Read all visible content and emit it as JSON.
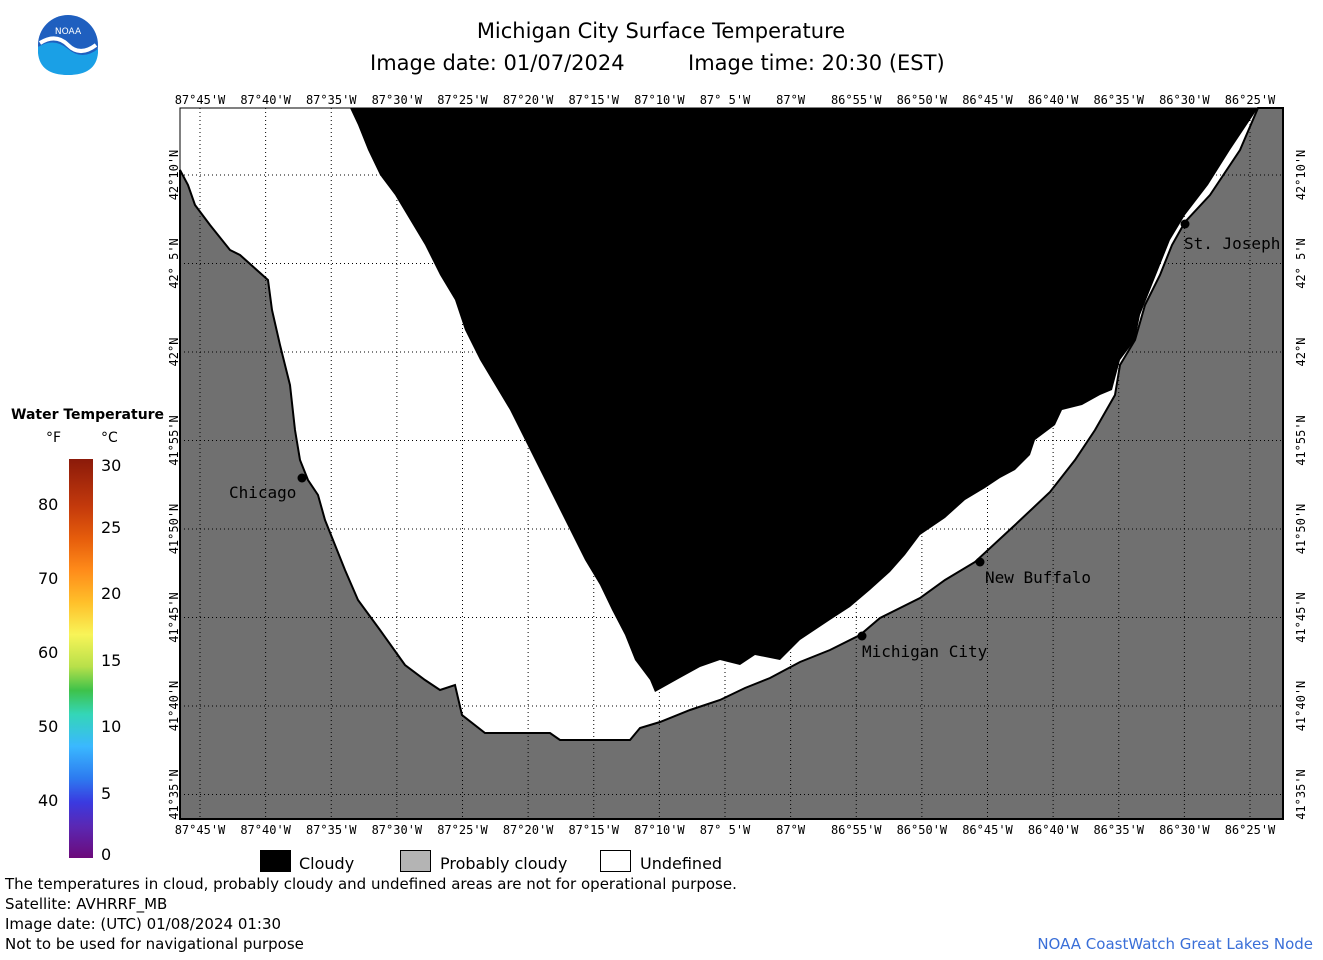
{
  "header": {
    "title": "Michigan City Surface Temperature",
    "image_date": "Image date: 01/07/2024",
    "image_time": "Image time: 20:30 (EST)"
  },
  "logo": {
    "text": "NOAA",
    "icon": "noaa-logo"
  },
  "map": {
    "lon_labels": [
      "87°45'W",
      "87°40'W",
      "87°35'W",
      "87°30'W",
      "87°25'W",
      "87°20'W",
      "87°15'W",
      "87°10'W",
      "87° 5'W",
      "87°W",
      "86°55'W",
      "86°50'W",
      "86°45'W",
      "86°40'W",
      "86°35'W",
      "86°30'W",
      "86°25'W"
    ],
    "lat_labels": [
      "42°10'N",
      "42° 5'N",
      "42°N",
      "41°55'N",
      "41°50'N",
      "41°45'N",
      "41°40'N",
      "41°35'N"
    ],
    "cities": [
      {
        "name": "Chicago"
      },
      {
        "name": "Michigan City"
      },
      {
        "name": "New Buffalo"
      },
      {
        "name": "St. Joseph"
      }
    ],
    "colors": {
      "cloudy": "#000000",
      "land": "#707070",
      "undefined": "#ffffff"
    }
  },
  "colorbar": {
    "title": "Water Temperature",
    "unit_f": "°F",
    "unit_c": "°C",
    "f_ticks": [
      "80",
      "70",
      "60",
      "50",
      "40"
    ],
    "c_ticks": [
      "30",
      "25",
      "20",
      "15",
      "10",
      "5",
      "0"
    ]
  },
  "legend": {
    "cloudy": "Cloudy",
    "probably_cloudy": "Probably cloudy",
    "undefined": "Undefined"
  },
  "footer": {
    "line1": "The temperatures in cloud, probably cloudy and undefined areas are not for operational purpose.",
    "line2": "Satellite: AVHRRF_MB",
    "line3": "Image date: (UTC) 01/08/2024  01:30",
    "line4": "Not to be used for navigational purpose",
    "credit": "NOAA CoastWatch Great Lakes Node"
  }
}
